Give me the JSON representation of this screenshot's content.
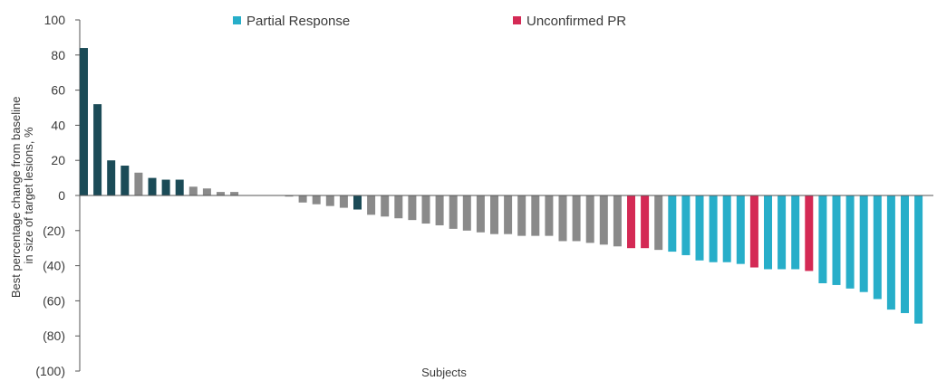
{
  "chart_data": {
    "type": "bar",
    "title": "",
    "xlabel": "Subjects",
    "ylabel": "Best percentage change from baseline in size of target lesions, %",
    "ylabel_lines": [
      "Best percentage change from baseline",
      "in size of target lesions, %"
    ],
    "ylim": [
      -100,
      100
    ],
    "yticks": [
      100,
      80,
      60,
      40,
      20,
      0,
      -20,
      -40,
      -60,
      -80,
      -100
    ],
    "ytick_labels": [
      "100",
      "80",
      "60",
      "40",
      "20",
      "0",
      "(20)",
      "(40)",
      "(60)",
      "(80)",
      "(100)"
    ],
    "grid": false,
    "legend": {
      "placement": "top",
      "entries": [
        {
          "label": "Partial Response",
          "color": "#27aec9"
        },
        {
          "label": "Unconfirmed PR",
          "color": "#d42a55"
        }
      ]
    },
    "colors": {
      "dark": "#1b4b57",
      "gray": "#8a8a8a",
      "partial_response": "#27aec9",
      "unconfirmed_pr": "#d42a55"
    },
    "bars": [
      {
        "value": 84,
        "group": "dark"
      },
      {
        "value": 52,
        "group": "dark"
      },
      {
        "value": 20,
        "group": "dark"
      },
      {
        "value": 17,
        "group": "dark"
      },
      {
        "value": 13,
        "group": "gray"
      },
      {
        "value": 10,
        "group": "dark"
      },
      {
        "value": 9,
        "group": "dark"
      },
      {
        "value": 9,
        "group": "dark"
      },
      {
        "value": 5,
        "group": "gray"
      },
      {
        "value": 4,
        "group": "gray"
      },
      {
        "value": 2,
        "group": "gray"
      },
      {
        "value": 2,
        "group": "gray"
      },
      {
        "value": 0,
        "group": "gray"
      },
      {
        "value": 0,
        "group": "gray"
      },
      {
        "value": 0,
        "group": "gray"
      },
      {
        "value": -0.5,
        "group": "gray"
      },
      {
        "value": -4,
        "group": "gray"
      },
      {
        "value": -5,
        "group": "gray"
      },
      {
        "value": -6,
        "group": "gray"
      },
      {
        "value": -7,
        "group": "gray"
      },
      {
        "value": -8,
        "group": "dark"
      },
      {
        "value": -11,
        "group": "gray"
      },
      {
        "value": -12,
        "group": "gray"
      },
      {
        "value": -13,
        "group": "gray"
      },
      {
        "value": -14,
        "group": "gray"
      },
      {
        "value": -16,
        "group": "gray"
      },
      {
        "value": -17,
        "group": "gray"
      },
      {
        "value": -19,
        "group": "gray"
      },
      {
        "value": -20,
        "group": "gray"
      },
      {
        "value": -21,
        "group": "gray"
      },
      {
        "value": -22,
        "group": "gray"
      },
      {
        "value": -22,
        "group": "gray"
      },
      {
        "value": -23,
        "group": "gray"
      },
      {
        "value": -23,
        "group": "gray"
      },
      {
        "value": -23,
        "group": "gray"
      },
      {
        "value": -26,
        "group": "gray"
      },
      {
        "value": -26,
        "group": "gray"
      },
      {
        "value": -27,
        "group": "gray"
      },
      {
        "value": -28,
        "group": "gray"
      },
      {
        "value": -29,
        "group": "gray"
      },
      {
        "value": -30,
        "group": "unconfirmed_pr"
      },
      {
        "value": -30,
        "group": "unconfirmed_pr"
      },
      {
        "value": -31,
        "group": "gray"
      },
      {
        "value": -32,
        "group": "partial_response"
      },
      {
        "value": -34,
        "group": "partial_response"
      },
      {
        "value": -37,
        "group": "partial_response"
      },
      {
        "value": -38,
        "group": "partial_response"
      },
      {
        "value": -38,
        "group": "partial_response"
      },
      {
        "value": -39,
        "group": "partial_response"
      },
      {
        "value": -41,
        "group": "unconfirmed_pr"
      },
      {
        "value": -42,
        "group": "partial_response"
      },
      {
        "value": -42,
        "group": "partial_response"
      },
      {
        "value": -42,
        "group": "partial_response"
      },
      {
        "value": -43,
        "group": "unconfirmed_pr"
      },
      {
        "value": -50,
        "group": "partial_response"
      },
      {
        "value": -51,
        "group": "partial_response"
      },
      {
        "value": -53,
        "group": "partial_response"
      },
      {
        "value": -55,
        "group": "partial_response"
      },
      {
        "value": -59,
        "group": "partial_response"
      },
      {
        "value": -65,
        "group": "partial_response"
      },
      {
        "value": -67,
        "group": "partial_response"
      },
      {
        "value": -73,
        "group": "partial_response"
      }
    ]
  }
}
